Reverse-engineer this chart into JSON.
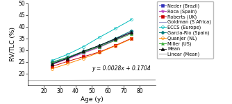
{
  "title": "",
  "xlabel": "Age (y)",
  "ylabel": "RV/TLC (%)",
  "xlim": [
    10,
    90
  ],
  "ylim": [
    15,
    50
  ],
  "xticks": [
    20,
    30,
    40,
    50,
    60,
    70,
    80
  ],
  "yticks": [
    20,
    25,
    30,
    35,
    40,
    45,
    50
  ],
  "annotation": "y = 0.0028x + 0.1704",
  "series": [
    {
      "name": "Neder (Brazil)",
      "color": "#3333bb",
      "marker": "s",
      "fillstyle": "full",
      "markersize": 2.5,
      "ages": [
        25,
        35,
        45,
        55,
        65,
        75
      ],
      "values": [
        24.2,
        26.5,
        29.0,
        31.5,
        34.5,
        37.8
      ]
    },
    {
      "name": "Roca (Spain)",
      "color": "#bb44bb",
      "marker": "*",
      "fillstyle": "full",
      "markersize": 3.5,
      "ages": [
        25,
        35,
        45,
        55,
        65,
        75
      ],
      "values": [
        23.8,
        26.2,
        28.8,
        31.2,
        34.2,
        37.5
      ]
    },
    {
      "name": "Roberts (UK)",
      "color": "#cc0000",
      "marker": "s",
      "fillstyle": "full",
      "markersize": 2.5,
      "ages": [
        25,
        35,
        45,
        55,
        65,
        75
      ],
      "values": [
        23.0,
        25.2,
        27.2,
        29.2,
        32.0,
        35.0
      ]
    },
    {
      "name": "Goldman (S Africa)",
      "color": "#9999cc",
      "marker": null,
      "fillstyle": "full",
      "markersize": 2.5,
      "ages": [
        25,
        35,
        45,
        55,
        65,
        75
      ],
      "values": [
        24.5,
        26.8,
        29.2,
        31.8,
        34.8,
        37.8
      ]
    },
    {
      "name": "ECCS (Europe)",
      "color": "#00bbbb",
      "marker": "o",
      "fillstyle": "none",
      "markersize": 2.8,
      "ages": [
        25,
        35,
        45,
        55,
        65,
        75
      ],
      "values": [
        25.5,
        28.2,
        31.5,
        35.5,
        39.2,
        43.0
      ]
    },
    {
      "name": "Garcia-Rio (Spain)",
      "color": "#007777",
      "marker": "D",
      "fillstyle": "full",
      "markersize": 2.5,
      "ages": [
        25,
        35,
        45,
        55,
        65,
        75
      ],
      "values": [
        24.8,
        27.0,
        29.5,
        32.0,
        35.0,
        38.2
      ]
    },
    {
      "name": "Quanjer (NL)",
      "color": "#ff8800",
      "marker": "o",
      "fillstyle": "none",
      "markersize": 2.8,
      "ages": [
        25,
        35,
        45,
        55,
        65,
        75
      ],
      "values": [
        22.0,
        24.2,
        26.5,
        29.0,
        31.8,
        34.8
      ]
    },
    {
      "name": "Miller (US)",
      "color": "#33aa33",
      "marker": "^",
      "fillstyle": "full",
      "markersize": 2.8,
      "ages": [
        25,
        35,
        45,
        55,
        65,
        75
      ],
      "values": [
        24.5,
        26.8,
        29.2,
        31.5,
        34.2,
        37.0
      ]
    },
    {
      "name": "Mean",
      "color": "#111111",
      "marker": "^",
      "fillstyle": "full",
      "markersize": 3.2,
      "ages": [
        25,
        35,
        45,
        55,
        65,
        75
      ],
      "values": [
        24.0,
        26.5,
        29.5,
        32.0,
        34.8,
        37.5
      ]
    }
  ],
  "linear_mean_color": "#aaaaaa",
  "linear_mean_name": "Linear (Mean)",
  "linear_slope": 0.0028,
  "linear_intercept": 17.04,
  "background_color": "#ffffff",
  "legend_fontsize": 4.8,
  "axis_fontsize": 6.5,
  "tick_fontsize": 5.5,
  "annot_fontsize": 5.5
}
